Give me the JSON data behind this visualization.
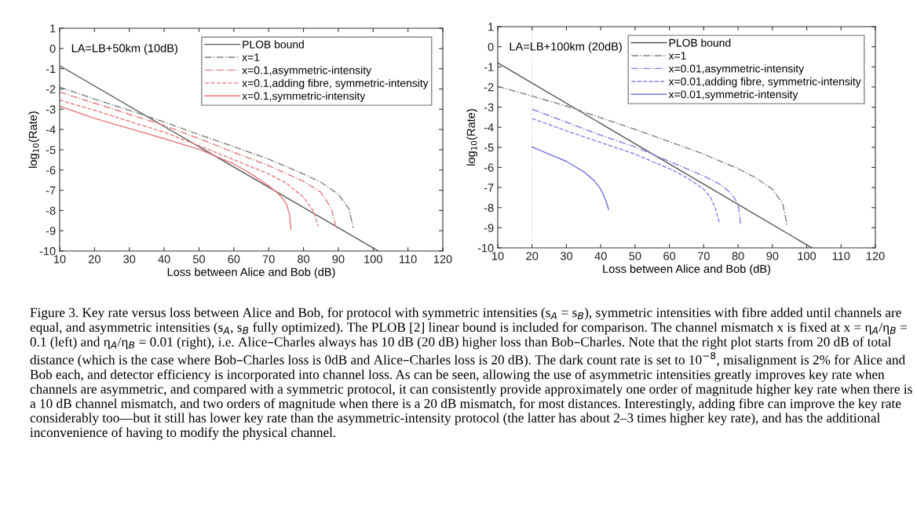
{
  "chart_data": [
    {
      "type": "line",
      "xlabel": "Loss between Alice and Bob (dB)",
      "ylabel": "log$_{10}$(Rate)",
      "xlim": [
        10,
        120
      ],
      "ylim": [
        -10,
        1
      ],
      "xticks": [
        10,
        20,
        30,
        40,
        50,
        60,
        70,
        80,
        90,
        100,
        110,
        120
      ],
      "yticks": [
        -10,
        -9,
        -8,
        -7,
        -6,
        -5,
        -4,
        -3,
        -2,
        -1,
        0,
        1
      ],
      "grid": false,
      "legend": "top right",
      "annotations": [
        "LA=LB+50km (10dB)"
      ],
      "series": [
        {
          "name": "PLOB bound",
          "color": "#555555",
          "line_style": "solid",
          "x": [
            10,
            101.5
          ],
          "values": [
            -0.85,
            -10
          ]
        },
        {
          "name": "x=1",
          "color": "#808080",
          "line_style": "dashdot",
          "x": [
            10,
            20,
            30,
            40,
            50,
            60,
            70,
            80,
            85,
            90,
            93,
            94.3
          ],
          "values": [
            -1.9,
            -2.5,
            -3.05,
            -3.63,
            -4.25,
            -4.85,
            -5.46,
            -6.2,
            -6.6,
            -7.2,
            -7.9,
            -8.86
          ]
        },
        {
          "name": "x=0.1,asymmetric-intensity",
          "color": "#e8787c",
          "line_style": "dashdot",
          "x": [
            10,
            20,
            30,
            40,
            50,
            60,
            70,
            80,
            85,
            88,
            89.5
          ],
          "values": [
            -2.15,
            -2.7,
            -3.25,
            -3.8,
            -4.45,
            -5.13,
            -5.78,
            -6.56,
            -7.1,
            -7.9,
            -8.93
          ]
        },
        {
          "name": "x=0.1,adding fibre, symmetric-intensity",
          "color": "#e8787c",
          "line_style": "dashed",
          "x": [
            10,
            20,
            30,
            40,
            50,
            60,
            70,
            75,
            80,
            83,
            84.2
          ],
          "values": [
            -2.55,
            -3.05,
            -3.6,
            -4.13,
            -4.8,
            -5.49,
            -6.2,
            -6.64,
            -7.35,
            -8.07,
            -8.78
          ]
        },
        {
          "name": "x=0.1,symmetric-intensity",
          "color": "#e8787c",
          "line_style": "solid",
          "x": [
            10,
            20,
            30,
            40,
            50,
            60,
            65,
            70,
            73,
            75,
            76,
            76.4
          ],
          "values": [
            -2.85,
            -3.45,
            -3.95,
            -4.45,
            -4.98,
            -5.7,
            -6.2,
            -6.78,
            -7.2,
            -7.64,
            -8.2,
            -8.93
          ]
        }
      ]
    },
    {
      "type": "line",
      "xlabel": "Loss between Alice and Bob (dB)",
      "ylabel": "log$_{10}$(Rate)",
      "xlim": [
        10,
        120
      ],
      "ylim": [
        -10,
        1
      ],
      "xticks": [
        10,
        20,
        30,
        40,
        50,
        60,
        70,
        80,
        90,
        100,
        110,
        120
      ],
      "yticks": [
        -10,
        -9,
        -8,
        -7,
        -6,
        -5,
        -4,
        -3,
        -2,
        -1,
        0,
        1
      ],
      "grid": false,
      "legend": "top right",
      "ref_lines": [
        {
          "axis": "x",
          "value": 20,
          "color": "#c8c8c8",
          "line_style": "dotted"
        }
      ],
      "annotations": [
        "LA=LB+100km (20dB)",
        "Figure 3. Key rate versus loss between Alice and Bob, for protocol with symmetric intensities (s$_{A}$ = s$_{B}$), symmetric intensities with fibre added until channels are equal, and asymmetric intensities (s$_{A}$, s$_{B}$ fully optimized). The PLOB [2] linear bound is included for comparison. The channel mismatch x is fixed at x = η$_{A}$/η$_{B}$ = 0.1 (left) and η$_{A}$/η$_{B}$ = 0.01 (right), i.e. Alice–Charles always has 10 dB (20 dB) higher loss than Bob–Charles. Note that the right plot starts from 20 dB of total distance (which is the case where Bob–Charles loss is 0dB and Alice–Charles loss is 20 dB). The dark count rate is set to 10$^{−8}$, misalignment is 2% for Alice and Bob each, and detector efficiency is incorporated into channel loss. As can be seen, allowing the use of asymmetric intensities greatly improves key rate when channels are asymmetric, and compared with a symmetric protocol, it can consistently provide approximately one order of magnitude higher key rate when there is a 10 dB channel mismatch, and two orders of magnitude when there is a 20 dB mismatch, for most distances. Interestingly, adding fibre can improve the key rate considerably too—but it still has lower key rate than the asymmetric-intensity protocol (the latter has about 2–3 times higher key rate), and has the additional inconvenience of having to modify the physical channel."
      ],
      "series": [
        {
          "name": "PLOB bound",
          "color": "#555555",
          "line_style": "solid",
          "x": [
            10,
            101.5
          ],
          "values": [
            -0.8,
            -10
          ]
        },
        {
          "name": "x=1",
          "color": "#808080",
          "line_style": "dashdot",
          "x": [
            10,
            20,
            30,
            40,
            50,
            60,
            70,
            80,
            85,
            90,
            93,
            94.3
          ],
          "values": [
            -1.97,
            -2.45,
            -2.95,
            -3.53,
            -4.11,
            -4.72,
            -5.34,
            -6.06,
            -6.5,
            -7.08,
            -7.8,
            -8.88
          ]
        },
        {
          "name": "x=0.01,asymmetric-intensity",
          "color": "#8080e8",
          "line_style": "dashdot",
          "x": [
            20,
            30,
            40,
            50,
            60,
            70,
            75,
            78,
            80,
            80.8
          ],
          "values": [
            -3.1,
            -3.75,
            -4.4,
            -4.98,
            -5.7,
            -6.42,
            -6.86,
            -7.3,
            -7.8,
            -8.88
          ]
        },
        {
          "name": "x=0.01,adding fibre, symmetric-intensity",
          "color": "#8080e8",
          "line_style": "dashed",
          "x": [
            20,
            30,
            40,
            50,
            60,
            65,
            70,
            72,
            73.5,
            74.5
          ],
          "values": [
            -3.57,
            -4.18,
            -4.76,
            -5.34,
            -6.06,
            -6.5,
            -7.08,
            -7.5,
            -8.09,
            -8.74
          ]
        },
        {
          "name": "x=0.01,symmetric-intensity",
          "color": "#7070e0",
          "line_style": "solid",
          "x": [
            20,
            25,
            30,
            35,
            38,
            40,
            41.5,
            42.3
          ],
          "values": [
            -4.98,
            -5.34,
            -5.7,
            -6.21,
            -6.64,
            -7.08,
            -7.65,
            -8.09
          ]
        }
      ]
    }
  ]
}
